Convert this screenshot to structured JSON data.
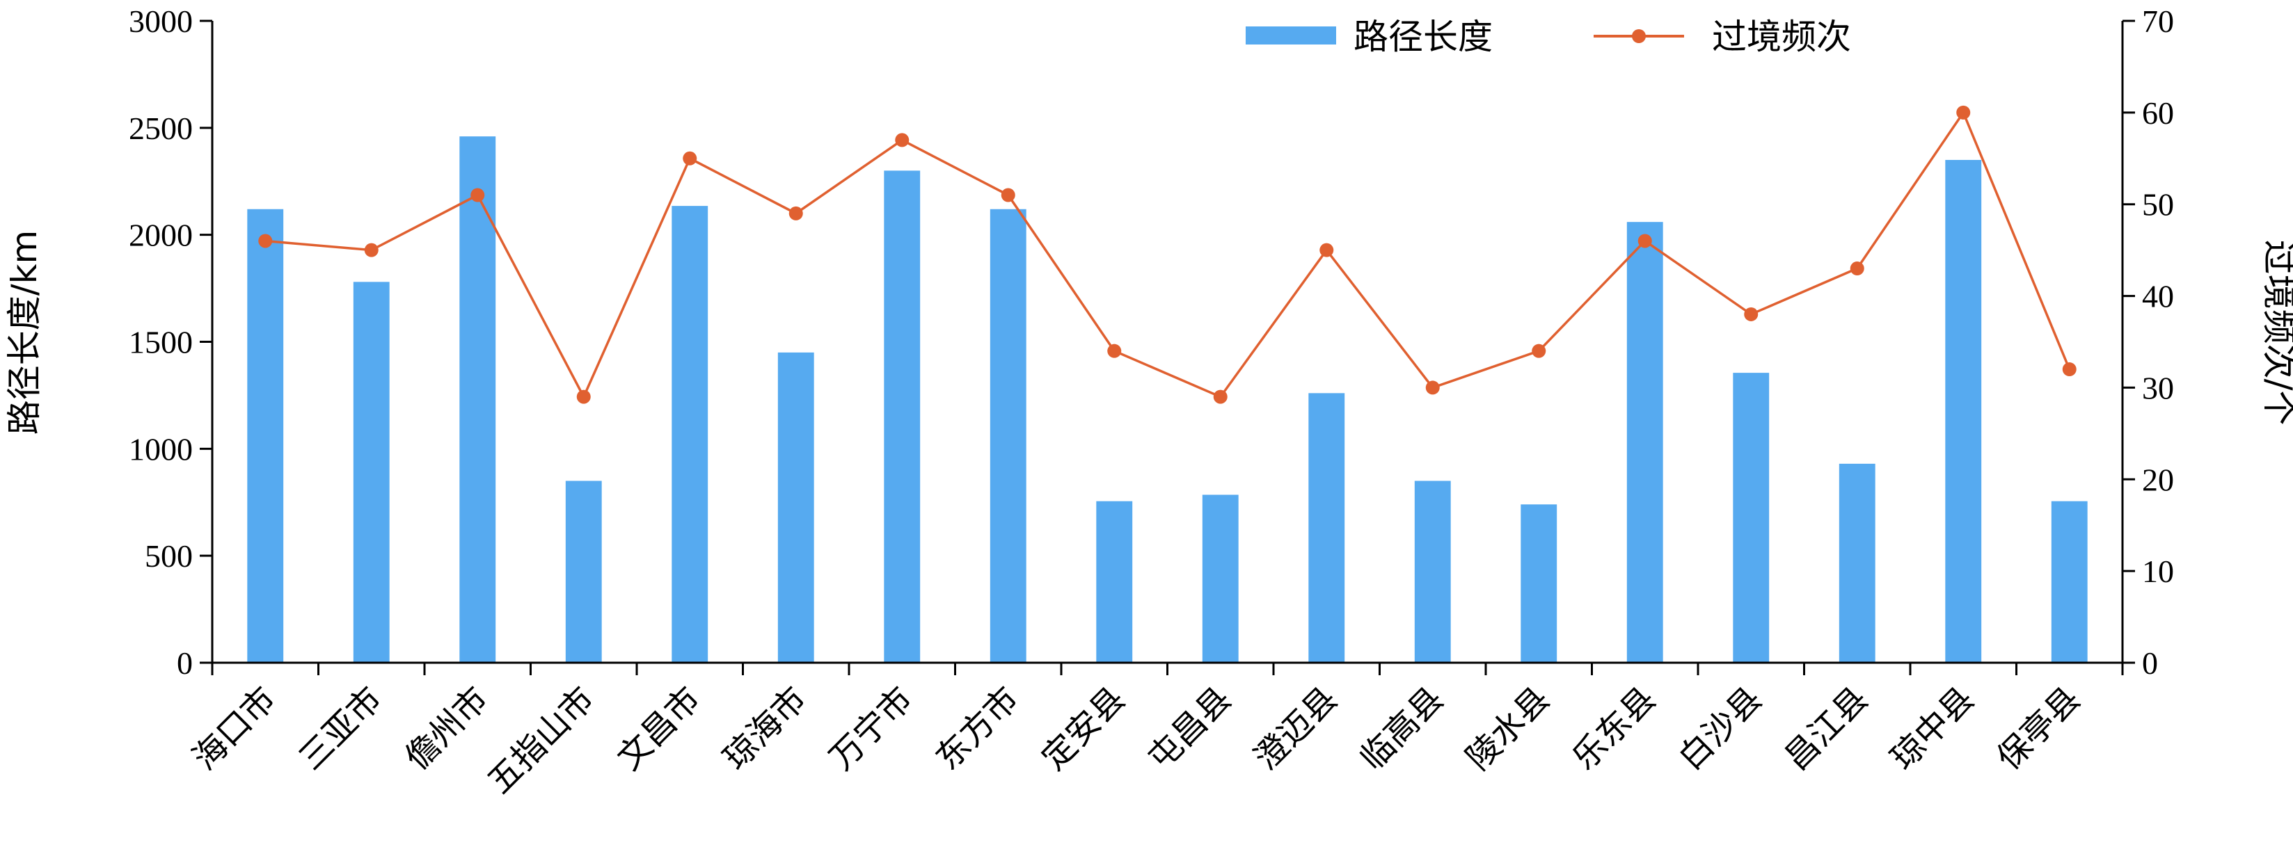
{
  "chart_data": {
    "type": "bar",
    "categories": [
      "海口市",
      "三亚市",
      "儋州市",
      "五指山市",
      "文昌市",
      "琼海市",
      "万宁市",
      "东方市",
      "定安县",
      "屯昌县",
      "澄迈县",
      "临高县",
      "陵水县",
      "乐东县",
      "白沙县",
      "昌江县",
      "琼中县",
      "保亭县"
    ],
    "series": [
      {
        "name": "路径长度",
        "type": "bar",
        "axis": "left",
        "color": "#56aaf0",
        "values": [
          2120,
          1780,
          2460,
          850,
          2135,
          1450,
          2300,
          2120,
          755,
          785,
          1260,
          850,
          740,
          2060,
          1355,
          930,
          2350,
          755
        ]
      },
      {
        "name": "过境频次",
        "type": "line",
        "axis": "right",
        "color": "#e06030",
        "values": [
          46,
          45,
          51,
          29,
          55,
          49,
          57,
          51,
          34,
          29,
          45,
          30,
          34,
          46,
          38,
          43,
          60,
          32
        ]
      }
    ],
    "ylabel": "路径长度/km",
    "y2label": "过境频次/个",
    "ylim": [
      0,
      3000
    ],
    "y2lim": [
      0,
      70
    ],
    "yticks": [
      0,
      500,
      1000,
      1500,
      2000,
      2500,
      3000
    ],
    "y2ticks": [
      0,
      10,
      20,
      30,
      40,
      50,
      60,
      70
    ],
    "grid": false,
    "legend_position": "top-right"
  }
}
